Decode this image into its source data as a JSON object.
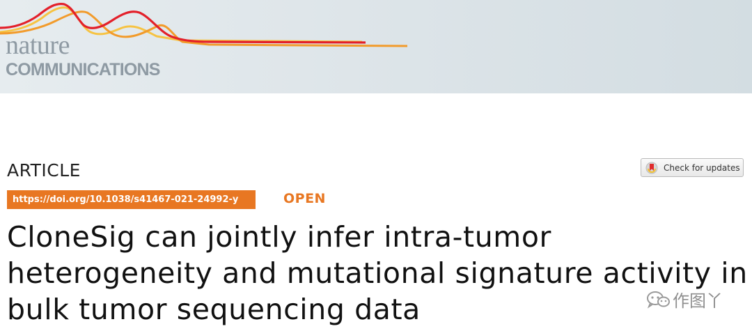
{
  "journal": {
    "name_top": "nature",
    "name_bottom": "COMMUNICATIONS",
    "colors": {
      "banner": "#dfe6ea",
      "wave_red": "#e3202a",
      "wave_orange": "#f29b2b",
      "wave_yellow": "#f6c343",
      "logo_text": "#8e9aa3"
    }
  },
  "article": {
    "type": "ARTICLE",
    "doi": "https://doi.org/10.1038/s41467-021-24992-y",
    "access": "OPEN",
    "title": "CloneSig can jointly infer intra-tumor heterogeneity and mutational signature activity in bulk tumor sequencing data",
    "accent_color": "#e87722"
  },
  "updates_button": {
    "label": "Check for updates",
    "icon": "crossmark-icon"
  },
  "watermark": {
    "text": "作图丫",
    "icon": "wechat-icon"
  }
}
